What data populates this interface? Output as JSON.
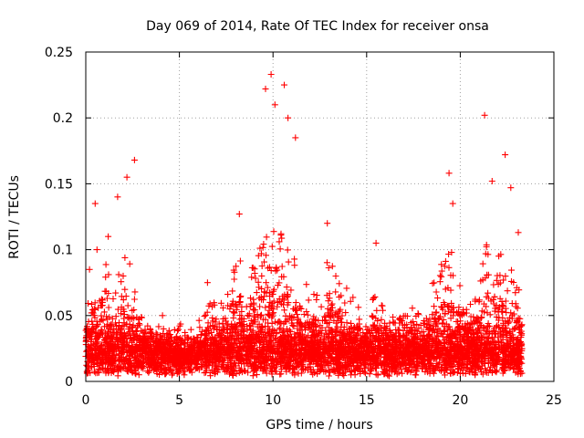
{
  "chart_data": {
    "type": "scatter",
    "title": "Day 069 of 2014, Rate Of TEC Index for receiver onsa",
    "xlabel": "GPS time / hours",
    "ylabel": "ROTI / TECUs",
    "xlim": [
      0,
      25
    ],
    "ylim": [
      0,
      0.25
    ],
    "x_ticks": [
      0,
      5,
      10,
      15,
      20,
      25
    ],
    "x_tick_labels": [
      "0",
      "5",
      "10",
      "15",
      "20",
      "25"
    ],
    "y_ticks": [
      0,
      0.05,
      0.1,
      0.15,
      0.2,
      0.25
    ],
    "y_tick_labels": [
      "0",
      "0.05",
      "0.1",
      "0.15",
      "0.2",
      "0.25"
    ],
    "grid": true,
    "marker": "+",
    "color": "#ff0000",
    "series_name": "ROTI",
    "x_coverage_hours": [
      0,
      23.3
    ],
    "density_profile": {
      "description": "approximate upper envelope of bulk points per hour (ROTI/TECUs)",
      "hour": [
        0,
        0.5,
        1,
        1.5,
        2,
        2.5,
        3,
        3.5,
        4,
        4.5,
        5,
        5.5,
        6,
        6.5,
        7,
        7.5,
        8,
        8.5,
        9,
        9.5,
        10,
        10.5,
        11,
        11.5,
        12,
        12.5,
        13,
        13.5,
        14,
        14.5,
        15,
        15.5,
        16,
        16.5,
        17,
        17.5,
        18,
        18.5,
        19,
        19.5,
        20,
        20.5,
        21,
        21.5,
        22,
        22.5,
        23,
        23.3
      ],
      "envelope": [
        0.06,
        0.09,
        0.1,
        0.07,
        0.1,
        0.09,
        0.05,
        0.04,
        0.035,
        0.03,
        0.022,
        0.025,
        0.045,
        0.06,
        0.06,
        0.07,
        0.1,
        0.09,
        0.09,
        0.12,
        0.13,
        0.11,
        0.1,
        0.08,
        0.07,
        0.07,
        0.1,
        0.08,
        0.07,
        0.06,
        0.05,
        0.07,
        0.06,
        0.05,
        0.05,
        0.06,
        0.07,
        0.08,
        0.09,
        0.1,
        0.08,
        0.06,
        0.08,
        0.11,
        0.1,
        0.09,
        0.08,
        0.07
      ]
    },
    "notable_points": [
      {
        "x": 0.2,
        "y": 0.085
      },
      {
        "x": 0.5,
        "y": 0.135
      },
      {
        "x": 0.6,
        "y": 0.1
      },
      {
        "x": 1.2,
        "y": 0.11
      },
      {
        "x": 1.7,
        "y": 0.14
      },
      {
        "x": 2.2,
        "y": 0.155
      },
      {
        "x": 2.6,
        "y": 0.168
      },
      {
        "x": 4.1,
        "y": 0.05
      },
      {
        "x": 6.5,
        "y": 0.075
      },
      {
        "x": 8.2,
        "y": 0.127
      },
      {
        "x": 9.6,
        "y": 0.222
      },
      {
        "x": 9.9,
        "y": 0.233
      },
      {
        "x": 10.1,
        "y": 0.21
      },
      {
        "x": 10.6,
        "y": 0.225
      },
      {
        "x": 10.8,
        "y": 0.2
      },
      {
        "x": 11.2,
        "y": 0.185
      },
      {
        "x": 12.9,
        "y": 0.12
      },
      {
        "x": 15.5,
        "y": 0.105
      },
      {
        "x": 19.4,
        "y": 0.158
      },
      {
        "x": 19.6,
        "y": 0.135
      },
      {
        "x": 21.3,
        "y": 0.202
      },
      {
        "x": 21.7,
        "y": 0.152
      },
      {
        "x": 22.4,
        "y": 0.172
      },
      {
        "x": 22.7,
        "y": 0.147
      },
      {
        "x": 23.1,
        "y": 0.113
      }
    ]
  }
}
